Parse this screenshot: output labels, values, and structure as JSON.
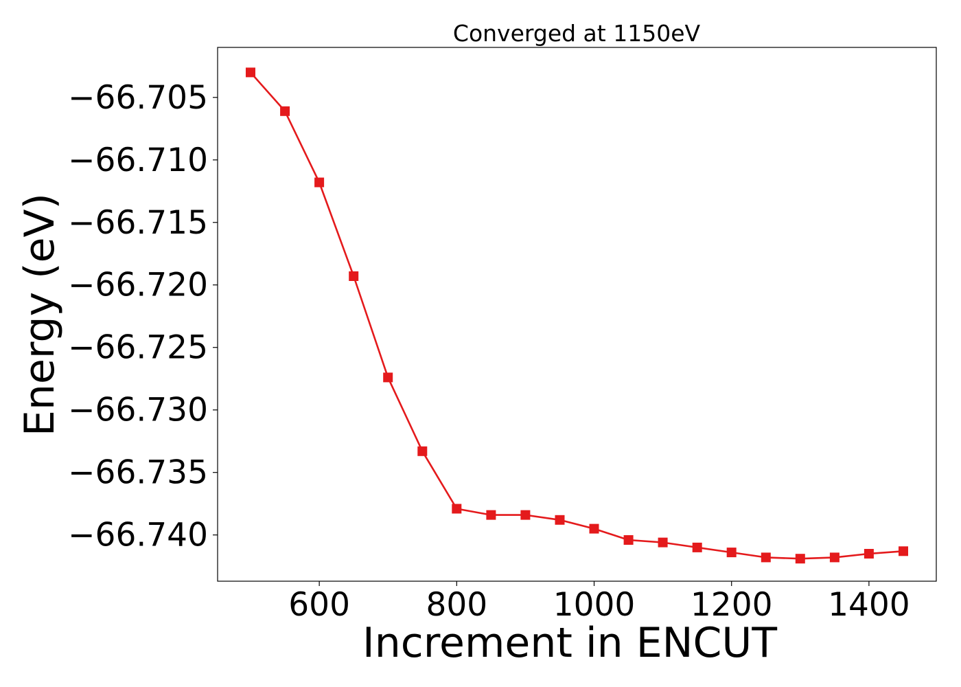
{
  "chart_data": {
    "type": "line",
    "title": "Converged at 1150eV",
    "xlabel": "Increment in ENCUT",
    "ylabel": "Energy (eV)",
    "xlim": [
      452,
      1498
    ],
    "ylim": [
      -66.7437,
      -66.701
    ],
    "x_ticks": [
      600,
      800,
      1000,
      1200,
      1400
    ],
    "x_tick_labels": [
      "600",
      "800",
      "1000",
      "1200",
      "1400"
    ],
    "y_ticks": [
      -66.705,
      -66.71,
      -66.715,
      -66.72,
      -66.725,
      -66.73,
      -66.735,
      -66.74
    ],
    "y_tick_labels": [
      "−66.705",
      "−66.710",
      "−66.715",
      "−66.720",
      "−66.725",
      "−66.730",
      "−66.735",
      "−66.740"
    ],
    "grid": false,
    "legend": "none",
    "series": [
      {
        "color": "#e41a1c",
        "marker": "square",
        "x": [
          500,
          550,
          600,
          650,
          700,
          750,
          800,
          850,
          900,
          950,
          1000,
          1050,
          1100,
          1150,
          1200,
          1250,
          1300,
          1350,
          1400,
          1450
        ],
        "y": [
          -66.703,
          -66.7061,
          -66.7118,
          -66.7193,
          -66.7274,
          -66.7333,
          -66.7379,
          -66.7384,
          -66.7384,
          -66.7388,
          -66.7395,
          -66.7404,
          -66.7406,
          -66.741,
          -66.7414,
          -66.7418,
          -66.7419,
          -66.7418,
          -66.7415,
          -66.7413
        ]
      }
    ]
  }
}
